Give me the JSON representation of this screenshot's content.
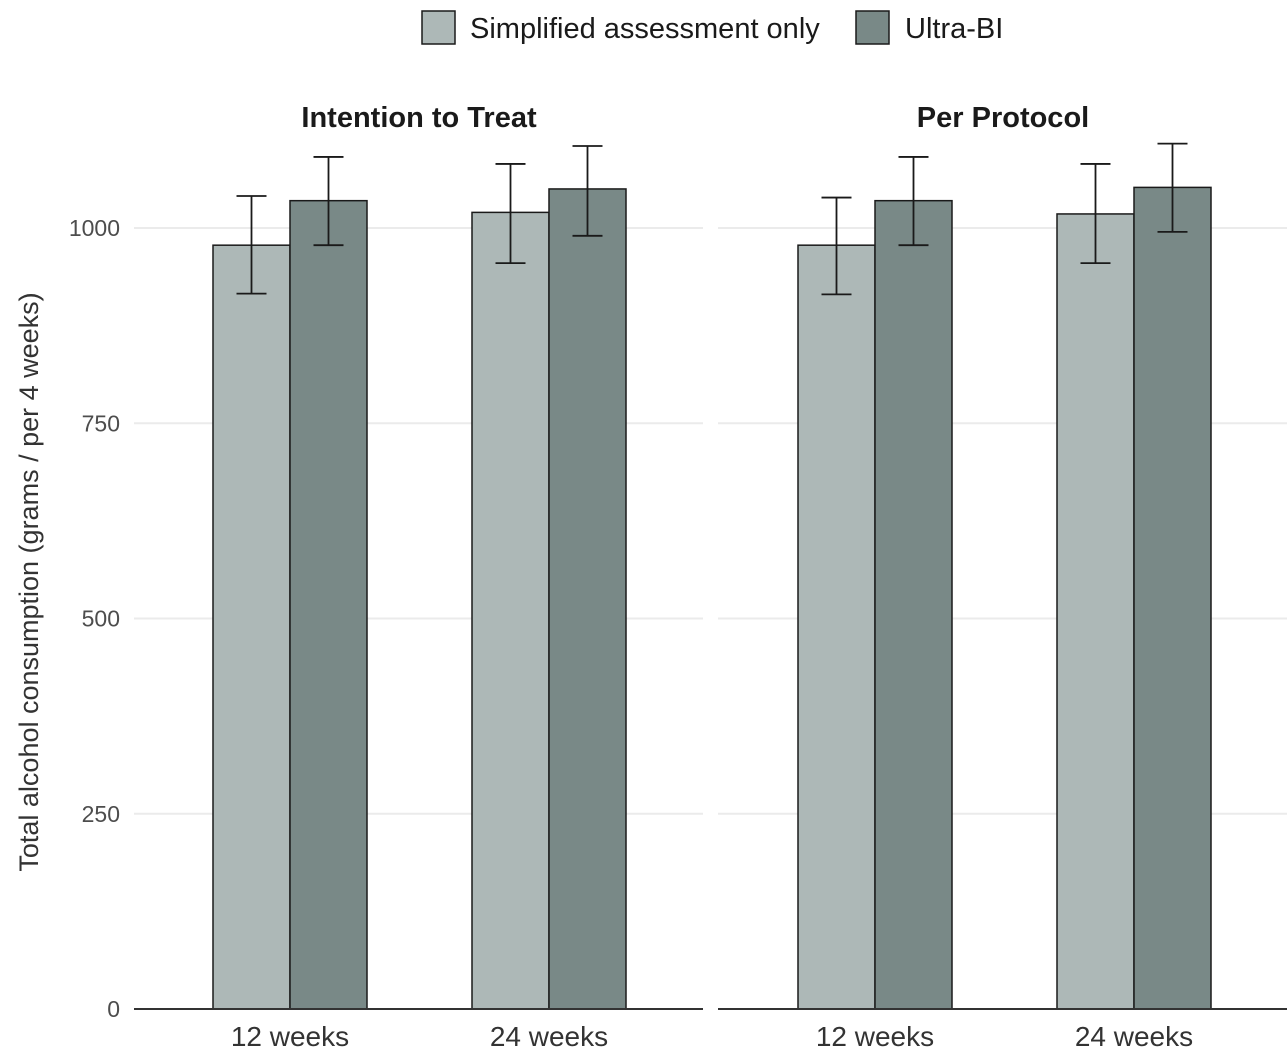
{
  "chart_data": {
    "type": "bar",
    "legend": {
      "position": "top",
      "entries": [
        {
          "name": "Simplified assessment only",
          "color": "#adb8b7"
        },
        {
          "name": "Ultra-BI",
          "color": "#798987"
        }
      ]
    },
    "ylabel": "Total alcohol consumption (grams / per 4 weeks)",
    "xlabel": "",
    "ylim": [
      0,
      1100
    ],
    "yticks": [
      "0",
      "250",
      "500",
      "750",
      "1000"
    ],
    "grid": true,
    "categories": [
      "12 weeks",
      "24 weeks"
    ],
    "facets": [
      {
        "title": "Intention to Treat",
        "series": [
          {
            "name": "Simplified assessment only",
            "values": [
              978,
              1020
            ],
            "err_low": [
              916,
              955
            ],
            "err_high": [
              1041,
              1082
            ]
          },
          {
            "name": "Ultra-BI",
            "values": [
              1035,
              1050
            ],
            "err_low": [
              978,
              990
            ],
            "err_high": [
              1091,
              1105
            ]
          }
        ]
      },
      {
        "title": "Per Protocol",
        "series": [
          {
            "name": "Simplified assessment only",
            "values": [
              978,
              1018
            ],
            "err_low": [
              915,
              955
            ],
            "err_high": [
              1039,
              1082
            ]
          },
          {
            "name": "Ultra-BI",
            "values": [
              1035,
              1052
            ],
            "err_low": [
              978,
              995
            ],
            "err_high": [
              1091,
              1108
            ]
          }
        ]
      }
    ]
  }
}
